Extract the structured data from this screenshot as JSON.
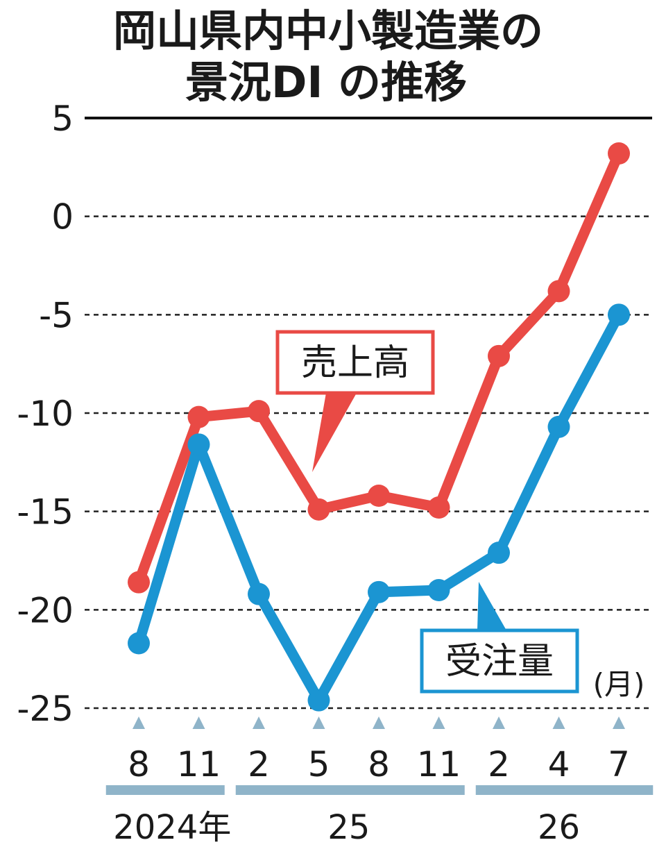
{
  "chart_data": {
    "type": "line",
    "title_lines": [
      "岡山県内中小製造業の",
      "景況DI の推移"
    ],
    "categories": [
      "8",
      "11",
      "2",
      "5",
      "8",
      "11",
      "2",
      "4",
      "7"
    ],
    "year_groups": [
      {
        "label": "2024年",
        "count": 2
      },
      {
        "label": "25",
        "count": 4
      },
      {
        "label": "26",
        "count": 3
      }
    ],
    "x_unit_label": "(月)",
    "yticks": [
      "5",
      "0",
      "-5",
      "-10",
      "-15",
      "-20",
      "-25"
    ],
    "ylim": [
      -25,
      5
    ],
    "grid": "dashed horizontal",
    "series": [
      {
        "name": "売上高",
        "color": "#e94a45",
        "values": [
          -18.6,
          -10.2,
          -9.9,
          -14.9,
          -14.2,
          -14.8,
          -7.1,
          -3.8,
          3.2
        ]
      },
      {
        "name": "受注量",
        "color": "#1b95d2",
        "values": [
          -21.7,
          -11.6,
          -19.2,
          -24.6,
          -19.1,
          -19.0,
          -17.1,
          -10.7,
          -5.0
        ]
      }
    ],
    "accent_color": "#8fb4c9"
  }
}
